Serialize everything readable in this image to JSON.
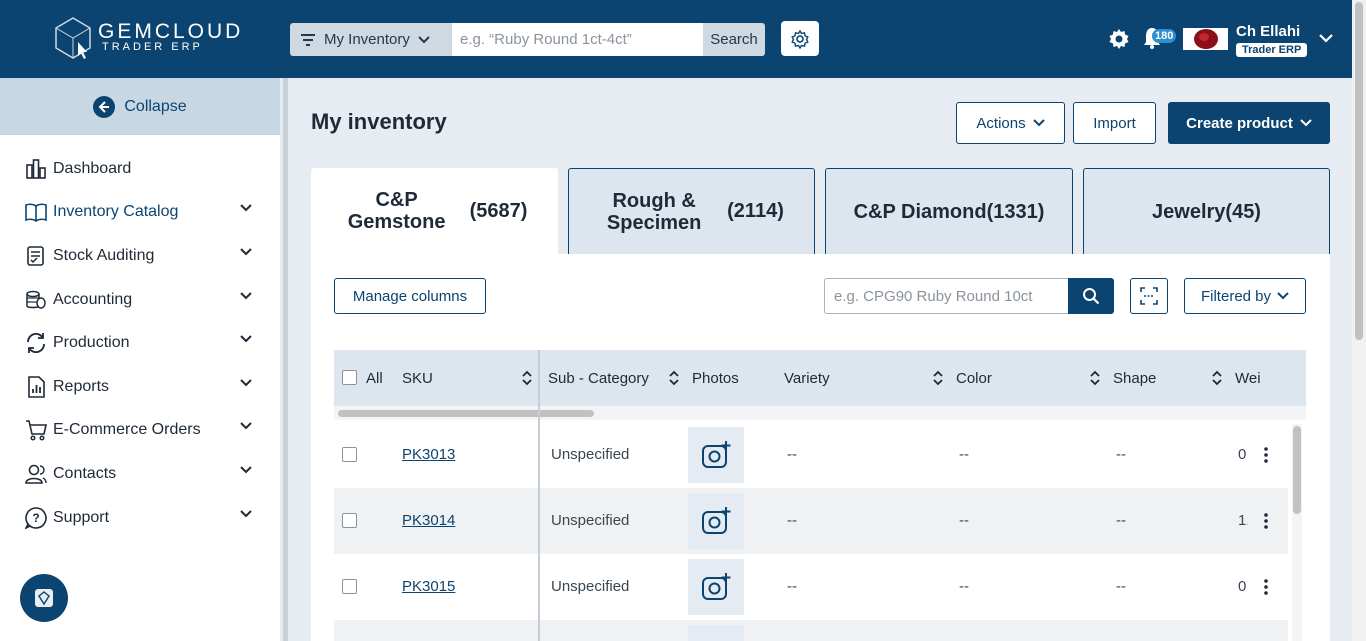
{
  "app": {
    "logo_text": "GEMCLOUD",
    "logo_sub": "TRADER ERP",
    "scope_label": "My Inventory",
    "search_placeholder": "e.g. “Ruby Round 1ct-4ct”",
    "search_button": "Search",
    "notification_count": "180",
    "user_name": "Ch Ellahi",
    "user_role": "Trader ERP"
  },
  "sidebar": {
    "collapse_label": "Collapse",
    "items": [
      {
        "label": "Dashboard",
        "icon": "dashboard-icon"
      },
      {
        "label": "Inventory Catalog",
        "icon": "book-icon"
      },
      {
        "label": "Stock Auditing",
        "icon": "clipboard-icon"
      },
      {
        "label": "Accounting",
        "icon": "coins-icon"
      },
      {
        "label": "Production",
        "icon": "refresh-icon"
      },
      {
        "label": "Reports",
        "icon": "report-icon"
      },
      {
        "label": "E-Commerce Orders",
        "icon": "cart-icon"
      },
      {
        "label": "Contacts",
        "icon": "contacts-icon"
      },
      {
        "label": "Support",
        "icon": "help-icon"
      }
    ]
  },
  "main": {
    "title": "My inventory",
    "actions_label": "Actions",
    "import_label": "Import",
    "create_label": "Create product",
    "tabs": [
      {
        "name": "C&P Gemstone",
        "count": "(5687)"
      },
      {
        "name": "Rough & Specimen",
        "count": "(2114)"
      },
      {
        "name": "C&P Diamond(1331)",
        "count": ""
      },
      {
        "name": "Jewelry(45)",
        "count": ""
      }
    ],
    "manage_columns": "Manage columns",
    "table_search_placeholder": "e.g. CPG90 Ruby Round 10ct",
    "filtered_by": "Filtered by"
  },
  "table": {
    "all_label": "All",
    "headers": [
      "SKU",
      "Sub - Category",
      "Photos",
      "Variety",
      "Color",
      "Shape",
      "Wei"
    ],
    "rows": [
      {
        "sku": "PK3013",
        "sub_category": "Unspecified",
        "variety": "--",
        "color": "--",
        "shape": "--",
        "weight": "0"
      },
      {
        "sku": "PK3014",
        "sub_category": "Unspecified",
        "variety": "--",
        "color": "--",
        "shape": "--",
        "weight": "1."
      },
      {
        "sku": "PK3015",
        "sub_category": "Unspecified",
        "variety": "--",
        "color": "--",
        "shape": "--",
        "weight": "0"
      }
    ]
  },
  "colors": {
    "brand": "#0b4470",
    "header_bg": "#dde6ee",
    "accent": "#2d8fd0"
  }
}
